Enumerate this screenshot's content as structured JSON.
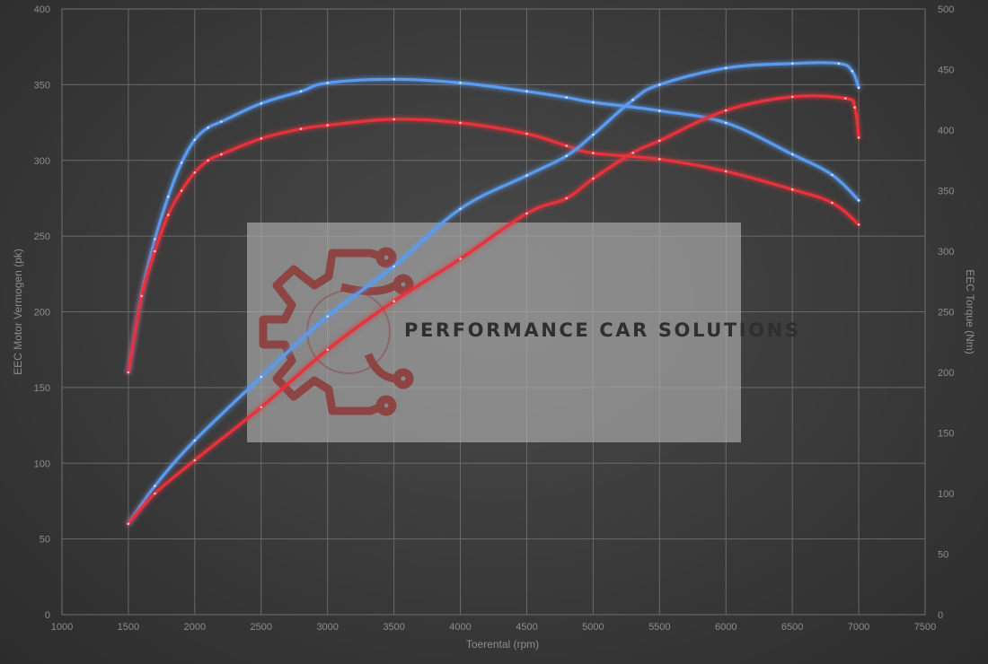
{
  "chart_data": {
    "type": "line",
    "xlabel": "Toerental (rpm)",
    "ylabel_left": "EEC Motor Vermogen (pk)",
    "ylabel_right": "EEC Torque (Nm)",
    "xlim": [
      1000,
      7500
    ],
    "ylim_left": [
      0,
      400
    ],
    "ylim_right": [
      0,
      500
    ],
    "x_ticks": [
      1000,
      1500,
      2000,
      2500,
      3000,
      3500,
      4000,
      4500,
      5000,
      5500,
      6000,
      6500,
      7000,
      7500
    ],
    "y_ticks_left": [
      0,
      50,
      100,
      150,
      200,
      250,
      300,
      350,
      400
    ],
    "y_ticks_right": [
      0,
      50,
      100,
      150,
      200,
      250,
      300,
      350,
      400,
      450,
      500
    ],
    "grid": true,
    "legend": "none",
    "series": [
      {
        "color": "#5a9bf0",
        "axis": "right",
        "x": [
          1500,
          1600,
          1700,
          1800,
          1900,
          2000,
          2100,
          2200,
          2500,
          2800,
          3000,
          3500,
          4000,
          4500,
          4800,
          5000,
          5500,
          6000,
          6500,
          6800,
          7000
        ],
        "y": [
          200,
          265,
          310,
          345,
          373,
          392,
          402,
          407,
          422,
          432,
          439,
          442,
          439,
          432,
          427,
          423,
          416,
          406,
          380,
          363,
          342
        ]
      },
      {
        "color": "#e6303a",
        "axis": "right",
        "x": [
          1500,
          1600,
          1700,
          1800,
          1900,
          2000,
          2100,
          2200,
          2500,
          2800,
          3000,
          3500,
          4000,
          4500,
          4800,
          5000,
          5500,
          6000,
          6500,
          6800,
          7000
        ],
        "y": [
          200,
          263,
          300,
          330,
          350,
          365,
          375,
          380,
          393,
          401,
          404,
          409,
          406,
          397,
          387,
          381,
          376,
          366,
          351,
          340,
          322
        ]
      },
      {
        "color": "#5a9bf0",
        "axis": "left",
        "x": [
          1500,
          1700,
          2000,
          2500,
          3000,
          3500,
          4000,
          4500,
          4800,
          5000,
          5300,
          5500,
          6000,
          6500,
          6850,
          6950,
          7000
        ],
        "y": [
          60,
          85,
          115,
          157,
          197,
          230,
          268,
          290,
          303,
          317,
          340,
          350,
          361,
          364,
          364,
          359,
          348
        ]
      },
      {
        "color": "#e6303a",
        "axis": "left",
        "x": [
          1500,
          1700,
          2000,
          2500,
          3000,
          3500,
          4000,
          4500,
          4800,
          5000,
          5300,
          5500,
          6000,
          6500,
          6900,
          6970,
          7000
        ],
        "y": [
          60,
          80,
          102,
          137,
          175,
          207,
          235,
          265,
          275,
          288,
          305,
          313,
          333,
          342,
          341,
          335,
          315
        ]
      }
    ]
  },
  "watermark": {
    "text": "PERFORMANCE CAR SOLUTIONS"
  }
}
